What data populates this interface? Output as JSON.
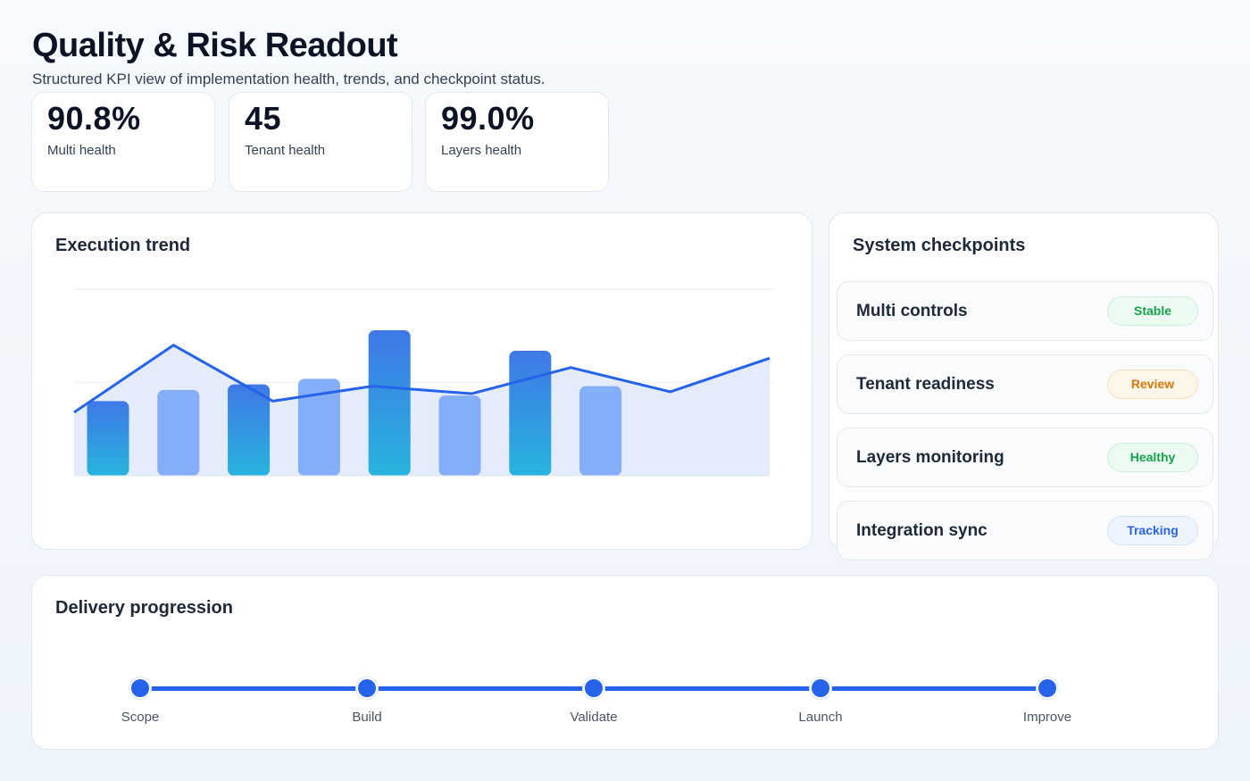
{
  "header": {
    "title": "Quality & Risk Readout",
    "subtitle": "Structured KPI view of implementation health, trends, and checkpoint status."
  },
  "kpis": [
    {
      "value": "90.8%",
      "label": "Multi health"
    },
    {
      "value": "45",
      "label": "Tenant health"
    },
    {
      "value": "99.0%",
      "label": "Layers health"
    }
  ],
  "trend": {
    "title": "Execution trend"
  },
  "chart_data": {
    "type": "bar",
    "title": "Execution trend",
    "ylim": [
      0,
      100
    ],
    "grid": true,
    "bars": [
      40,
      46,
      49,
      52,
      78,
      43,
      67,
      48
    ],
    "line": [
      34,
      70,
      40,
      48,
      44,
      58,
      45,
      63
    ],
    "colors": {
      "bar_dark_top": "#3f78e6",
      "bar_dark_bottom": "#27b4dd",
      "bar_light": "#84aef7",
      "line": "#2563eb",
      "area": "#e4ebfa"
    }
  },
  "checkpoints": {
    "title": "System checkpoints",
    "items": [
      {
        "name": "Multi controls",
        "status": "Stable",
        "color": "#16a34a",
        "bg": "#ecfbf1",
        "border": "#cdeed9"
      },
      {
        "name": "Tenant readiness",
        "status": "Review",
        "color": "#d97706",
        "bg": "#fff6ea",
        "border": "#f7dfbd"
      },
      {
        "name": "Layers monitoring",
        "status": "Healthy",
        "color": "#16a34a",
        "bg": "#ecfbf1",
        "border": "#cdeed9"
      },
      {
        "name": "Integration sync",
        "status": "Tracking",
        "color": "#2563eb",
        "bg": "#eef4fd",
        "border": "#d5e2f5"
      }
    ]
  },
  "progression": {
    "title": "Delivery progression",
    "steps": [
      "Scope",
      "Build",
      "Validate",
      "Launch",
      "Improve"
    ],
    "color": "#2563eb"
  }
}
